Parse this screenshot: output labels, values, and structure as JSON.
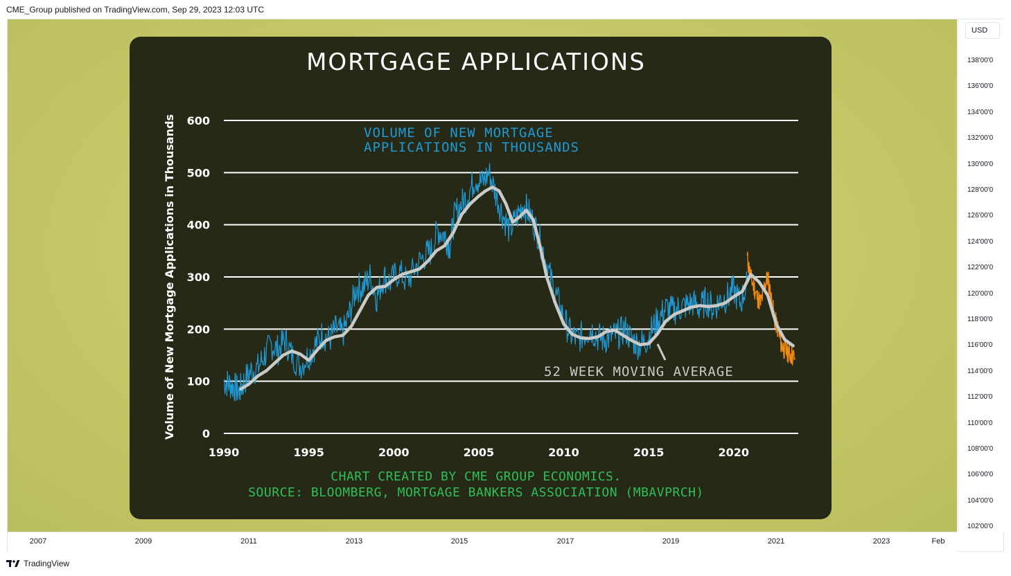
{
  "header": {
    "published_text": "CME_Group published on TradingView.com, Sep 29, 2023 12:03 UTC"
  },
  "price_axis": {
    "currency": "USD",
    "labels": [
      "138'00'0",
      "136'00'0",
      "134'00'0",
      "132'00'0",
      "130'00'0",
      "128'00'0",
      "126'00'0",
      "124'00'0",
      "122'00'0",
      "120'00'0",
      "118'00'0",
      "116'00'0",
      "114'00'0",
      "112'00'0",
      "110'00'0",
      "108'00'0",
      "106'00'0",
      "104'00'0",
      "102'00'0"
    ]
  },
  "time_axis": {
    "labels": [
      "2007",
      "2009",
      "2011",
      "2013",
      "2015",
      "2017",
      "2019",
      "2021",
      "2023",
      "Feb"
    ]
  },
  "brand": {
    "name": "TradingView",
    "logo_icon": "tradingview-logo-icon"
  },
  "colors": {
    "card_bg": "#272917",
    "weekly_series": "#1e9ad6",
    "moving_average": "#c9cbc9",
    "recent_series": "#f08a12",
    "footnote": "#2fbe57",
    "plot_bg": "#c6c768"
  },
  "chart_data": {
    "type": "line",
    "title": "MORTGAGE APPLICATIONS",
    "ylabel": "Volume of New Mortgage Applications in Thousands",
    "xlabel": "",
    "ylim": [
      0,
      600
    ],
    "xlim": [
      1990,
      2023.8
    ],
    "x_ticks": [
      "1990",
      "1995",
      "2000",
      "2005",
      "2010",
      "2015",
      "2020"
    ],
    "y_ticks": [
      "0",
      "100",
      "200",
      "300",
      "400",
      "500",
      "600"
    ],
    "grid": true,
    "annotations": [
      {
        "text_lines": [
          "VOLUME OF NEW MORTGAGE",
          "APPLICATIONS IN THOUSANDS"
        ]
      },
      {
        "text": "52 WEEK MOVING AVERAGE"
      }
    ],
    "footnote_lines": [
      "CHART CREATED BY CME GROUP ECONOMICS.",
      "SOURCE: BLOOMBERG, MORTGAGE BANKERS ASSOCIATION (MBAVPRCH)"
    ],
    "series": [
      {
        "kind": "weekly",
        "x": [
          1990.0,
          1990.3,
          1990.6,
          1990.9,
          1991.2,
          1991.6,
          1992.0,
          1992.4,
          1992.8,
          1993.2,
          1993.6,
          1994.0,
          1994.5,
          1995.0,
          1995.4,
          1995.8,
          1996.2,
          1996.6,
          1997.0,
          1997.4,
          1997.8,
          1998.2,
          1998.6,
          1999.0,
          1999.4,
          1999.8,
          2000.3,
          2000.8,
          2001.3,
          2001.8,
          2002.2,
          2002.6,
          2003.0,
          2003.3,
          2003.6,
          2004.0,
          2004.4,
          2004.8,
          2005.2,
          2005.6,
          2006.0,
          2006.4,
          2006.8,
          2007.2,
          2007.6,
          2008.0,
          2008.4,
          2008.8,
          2009.2,
          2009.6,
          2010.0,
          2010.4,
          2010.8,
          2011.2,
          2011.6,
          2012.0,
          2012.4,
          2012.8,
          2013.2,
          2013.6,
          2014.0,
          2014.4,
          2014.8,
          2015.2,
          2015.6,
          2016.0,
          2016.4,
          2016.8,
          2017.2,
          2017.6,
          2018.0,
          2018.4,
          2018.8,
          2019.2,
          2019.6,
          2020.0,
          2020.4,
          2020.8
        ],
        "y": [
          100,
          95,
          90,
          80,
          100,
          120,
          125,
          150,
          170,
          160,
          180,
          150,
          130,
          150,
          170,
          190,
          180,
          200,
          190,
          230,
          280,
          280,
          300,
          260,
          300,
          290,
          310,
          290,
          320,
          340,
          350,
          390,
          380,
          360,
          420,
          440,
          460,
          490,
          480,
          500,
          460,
          420,
          390,
          410,
          440,
          420,
          390,
          350,
          300,
          260,
          220,
          190,
          180,
          190,
          200,
          185,
          180,
          185,
          190,
          200,
          180,
          170,
          175,
          200,
          220,
          240,
          235,
          240,
          245,
          250,
          240,
          255,
          240,
          255,
          260,
          275,
          250,
          290
        ]
      },
      {
        "kind": "moving_average_52w",
        "x": [
          1991.0,
          1991.5,
          1992.0,
          1992.5,
          1993.0,
          1993.5,
          1994.0,
          1994.5,
          1995.0,
          1995.5,
          1996.0,
          1996.5,
          1997.0,
          1997.5,
          1998.0,
          1998.5,
          1999.0,
          1999.5,
          2000.0,
          2000.5,
          2001.0,
          2001.5,
          2002.0,
          2002.5,
          2003.0,
          2003.5,
          2004.0,
          2004.5,
          2005.0,
          2005.4,
          2005.8,
          2006.2,
          2006.6,
          2007.0,
          2007.4,
          2007.8,
          2008.2,
          2008.6,
          2009.0,
          2009.5,
          2010.0,
          2010.5,
          2011.0,
          2011.5,
          2012.0,
          2012.5,
          2013.0,
          2013.5,
          2014.0,
          2014.5,
          2015.0,
          2015.5,
          2016.0,
          2016.5,
          2017.0,
          2017.5,
          2018.0,
          2018.5,
          2019.0,
          2019.5,
          2020.0,
          2020.5,
          2021.0,
          2021.5,
          2022.0,
          2022.5,
          2023.0,
          2023.5
        ],
        "y": [
          85,
          95,
          110,
          120,
          135,
          150,
          158,
          152,
          140,
          160,
          178,
          185,
          188,
          205,
          235,
          265,
          280,
          282,
          295,
          305,
          310,
          315,
          330,
          350,
          360,
          385,
          420,
          440,
          455,
          465,
          472,
          465,
          440,
          405,
          415,
          428,
          410,
          360,
          300,
          250,
          210,
          190,
          183,
          182,
          185,
          195,
          198,
          188,
          178,
          170,
          172,
          190,
          215,
          228,
          235,
          242,
          245,
          243,
          245,
          250,
          262,
          272,
          305,
          290,
          265,
          210,
          180,
          168
        ]
      },
      {
        "kind": "recent",
        "x": [
          2020.8,
          2021.0,
          2021.2,
          2021.4,
          2021.6,
          2021.8,
          2022.0,
          2022.2,
          2022.4,
          2022.6,
          2022.8,
          2023.0,
          2023.2,
          2023.4,
          2023.6
        ],
        "y": [
          335,
          300,
          280,
          260,
          250,
          280,
          300,
          260,
          220,
          200,
          170,
          160,
          155,
          150,
          145
        ]
      }
    ]
  }
}
